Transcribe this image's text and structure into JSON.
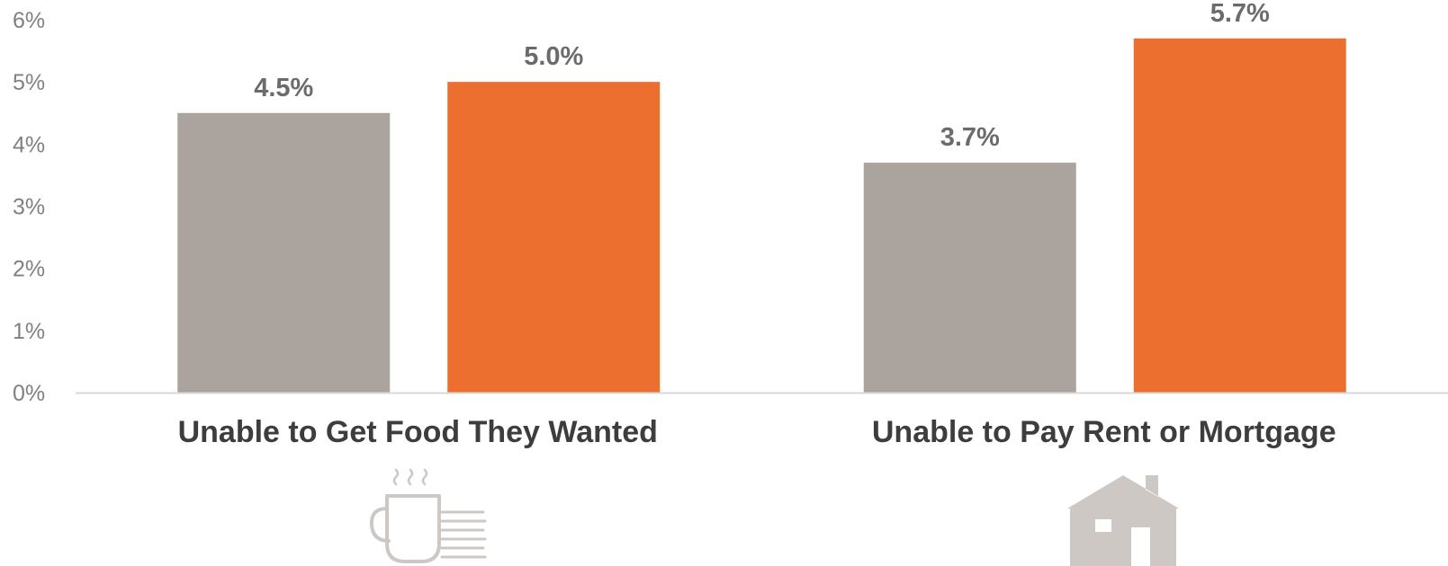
{
  "chart_data": {
    "type": "bar",
    "categories": [
      "Unable to Get Food They Wanted",
      "Unable to Pay Rent or Mortgage"
    ],
    "series": [
      {
        "color": "#aba39d",
        "values": [
          4.5,
          3.7
        ],
        "labels": [
          "4.5%",
          "3.7%"
        ]
      },
      {
        "color": "#ed6f30",
        "values": [
          5.0,
          5.7
        ],
        "labels": [
          "5.0%",
          "5.7%"
        ]
      }
    ],
    "ylim": [
      0,
      6
    ],
    "yticks": [
      {
        "value": 0,
        "label": "0%"
      },
      {
        "value": 1,
        "label": "1%"
      },
      {
        "value": 2,
        "label": "2%"
      },
      {
        "value": 3,
        "label": "3%"
      },
      {
        "value": 4,
        "label": "4%"
      },
      {
        "value": 5,
        "label": "5%"
      },
      {
        "value": 6,
        "label": "6%"
      }
    ],
    "grid": false,
    "legend": "none",
    "category_icons": [
      "coffee-cup-books-icon",
      "house-icon"
    ],
    "icon_color": "#cdc8c4",
    "axis_color": "#d9d9d9"
  }
}
